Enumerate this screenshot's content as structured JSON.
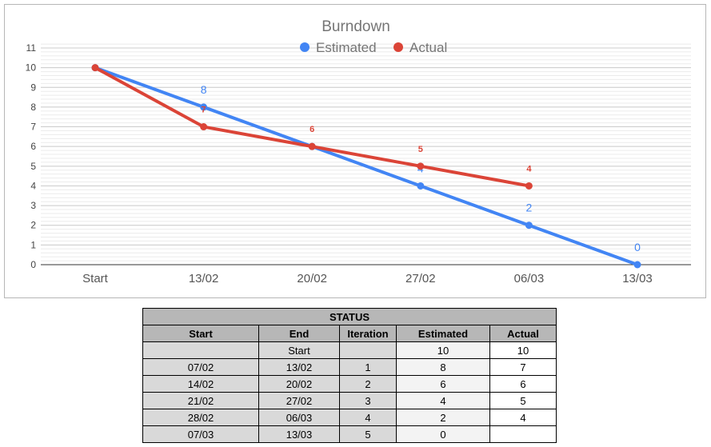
{
  "chart_data": {
    "type": "line",
    "title": "Burndown",
    "categories": [
      "Start",
      "13/02",
      "20/02",
      "27/02",
      "06/03",
      "13/03"
    ],
    "ylim": [
      0,
      11
    ],
    "yticks": [
      0,
      1,
      2,
      3,
      4,
      5,
      6,
      7,
      8,
      9,
      10,
      11
    ],
    "legend_position": "top",
    "grid": true,
    "series": [
      {
        "name": "Estimated",
        "color": "#4285f4",
        "values": [
          10,
          8,
          6,
          4,
          2,
          0
        ],
        "labels": [
          "",
          "8",
          "",
          "4",
          "2",
          "0"
        ]
      },
      {
        "name": "Actual",
        "color": "#db4437",
        "values": [
          10,
          7,
          6,
          5,
          4,
          null
        ],
        "labels": [
          "",
          "7",
          "6",
          "5",
          "4",
          ""
        ]
      }
    ]
  },
  "status_table": {
    "title": "STATUS",
    "headers": [
      "Start",
      "End",
      "Iteration",
      "Estimated",
      "Actual"
    ],
    "rows": [
      [
        "",
        "Start",
        "",
        "10",
        "10"
      ],
      [
        "07/02",
        "13/02",
        "1",
        "8",
        "7"
      ],
      [
        "14/02",
        "20/02",
        "2",
        "6",
        "6"
      ],
      [
        "21/02",
        "27/02",
        "3",
        "4",
        "5"
      ],
      [
        "28/02",
        "06/03",
        "4",
        "2",
        "4"
      ],
      [
        "07/03",
        "13/03",
        "5",
        "0",
        ""
      ]
    ]
  }
}
